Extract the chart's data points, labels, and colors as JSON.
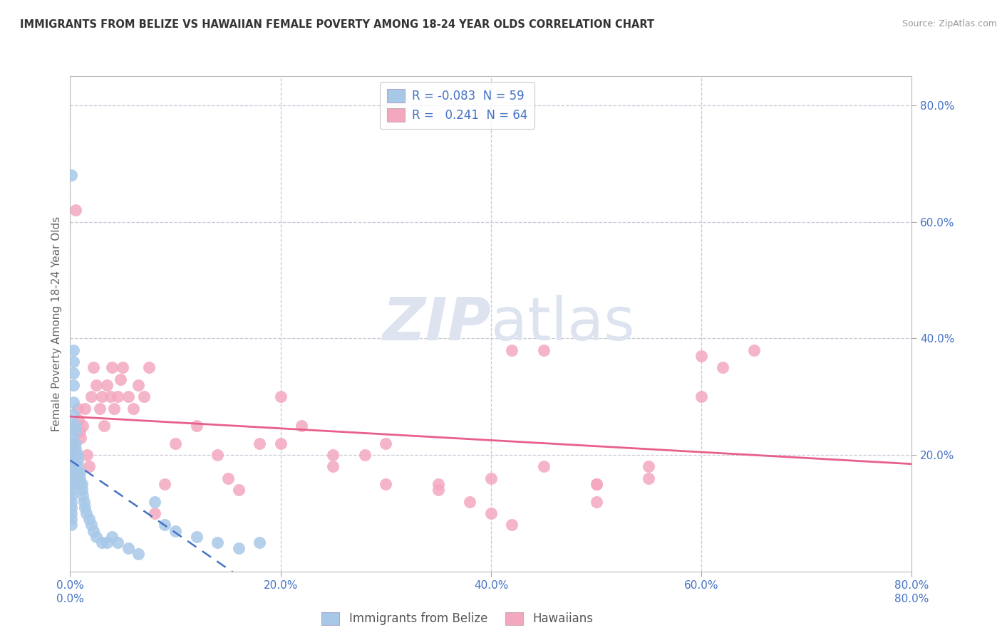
{
  "title": "IMMIGRANTS FROM BELIZE VS HAWAIIAN FEMALE POVERTY AMONG 18-24 YEAR OLDS CORRELATION CHART",
  "source": "Source: ZipAtlas.com",
  "ylabel": "Female Poverty Among 18-24 Year Olds",
  "xlim": [
    0.0,
    0.8
  ],
  "ylim": [
    0.0,
    0.85
  ],
  "ytick_vals": [
    0.2,
    0.4,
    0.6,
    0.8
  ],
  "xtick_vals": [
    0.0,
    0.2,
    0.4,
    0.6,
    0.8
  ],
  "legend1_label": "Immigrants from Belize",
  "legend2_label": "Hawaiians",
  "R1": "-0.083",
  "N1": "59",
  "R2": "0.241",
  "N2": "64",
  "color1": "#a8c8e8",
  "color2": "#f4a8c0",
  "trendline1_color": "#4472c4",
  "trendline2_color": "#e8608a",
  "background_color": "#ffffff",
  "grid_color": "#c8c8d8",
  "watermark_color": "#dde4f0",
  "scatter1_x": [
    0.001,
    0.001,
    0.001,
    0.001,
    0.001,
    0.001,
    0.001,
    0.001,
    0.001,
    0.001,
    0.001,
    0.001,
    0.001,
    0.001,
    0.001,
    0.003,
    0.003,
    0.003,
    0.003,
    0.003,
    0.003,
    0.005,
    0.005,
    0.005,
    0.005,
    0.005,
    0.007,
    0.007,
    0.007,
    0.007,
    0.009,
    0.009,
    0.009,
    0.011,
    0.011,
    0.012,
    0.013,
    0.014,
    0.015,
    0.018,
    0.02,
    0.022,
    0.025,
    0.03,
    0.035,
    0.04,
    0.045,
    0.055,
    0.065,
    0.08,
    0.09,
    0.1,
    0.12,
    0.14,
    0.16,
    0.18,
    0.001,
    0.001,
    0.001
  ],
  "scatter1_y": [
    0.68,
    0.25,
    0.22,
    0.2,
    0.19,
    0.18,
    0.17,
    0.15,
    0.14,
    0.13,
    0.12,
    0.11,
    0.1,
    0.09,
    0.08,
    0.38,
    0.36,
    0.34,
    0.32,
    0.29,
    0.27,
    0.25,
    0.24,
    0.22,
    0.21,
    0.2,
    0.2,
    0.19,
    0.18,
    0.17,
    0.17,
    0.16,
    0.15,
    0.15,
    0.14,
    0.13,
    0.12,
    0.11,
    0.1,
    0.09,
    0.08,
    0.07,
    0.06,
    0.05,
    0.05,
    0.06,
    0.05,
    0.04,
    0.03,
    0.12,
    0.08,
    0.07,
    0.06,
    0.05,
    0.04,
    0.05,
    0.23,
    0.21,
    0.16
  ],
  "scatter2_x": [
    0.001,
    0.002,
    0.004,
    0.005,
    0.007,
    0.008,
    0.009,
    0.01,
    0.012,
    0.014,
    0.016,
    0.018,
    0.02,
    0.022,
    0.025,
    0.028,
    0.03,
    0.032,
    0.035,
    0.038,
    0.04,
    0.042,
    0.045,
    0.048,
    0.05,
    0.055,
    0.06,
    0.065,
    0.07,
    0.075,
    0.08,
    0.09,
    0.1,
    0.12,
    0.14,
    0.16,
    0.18,
    0.2,
    0.22,
    0.25,
    0.28,
    0.3,
    0.35,
    0.38,
    0.4,
    0.42,
    0.45,
    0.5,
    0.55,
    0.6,
    0.62,
    0.65,
    0.55,
    0.6,
    0.5,
    0.42,
    0.15,
    0.2,
    0.25,
    0.3,
    0.35,
    0.4,
    0.45,
    0.5
  ],
  "scatter2_y": [
    0.22,
    0.2,
    0.19,
    0.62,
    0.28,
    0.26,
    0.24,
    0.23,
    0.25,
    0.28,
    0.2,
    0.18,
    0.3,
    0.35,
    0.32,
    0.28,
    0.3,
    0.25,
    0.32,
    0.3,
    0.35,
    0.28,
    0.3,
    0.33,
    0.35,
    0.3,
    0.28,
    0.32,
    0.3,
    0.35,
    0.1,
    0.15,
    0.22,
    0.25,
    0.2,
    0.14,
    0.22,
    0.3,
    0.25,
    0.18,
    0.2,
    0.22,
    0.15,
    0.12,
    0.1,
    0.08,
    0.38,
    0.12,
    0.16,
    0.37,
    0.35,
    0.38,
    0.18,
    0.3,
    0.15,
    0.38,
    0.16,
    0.22,
    0.2,
    0.15,
    0.14,
    0.16,
    0.18,
    0.15
  ]
}
